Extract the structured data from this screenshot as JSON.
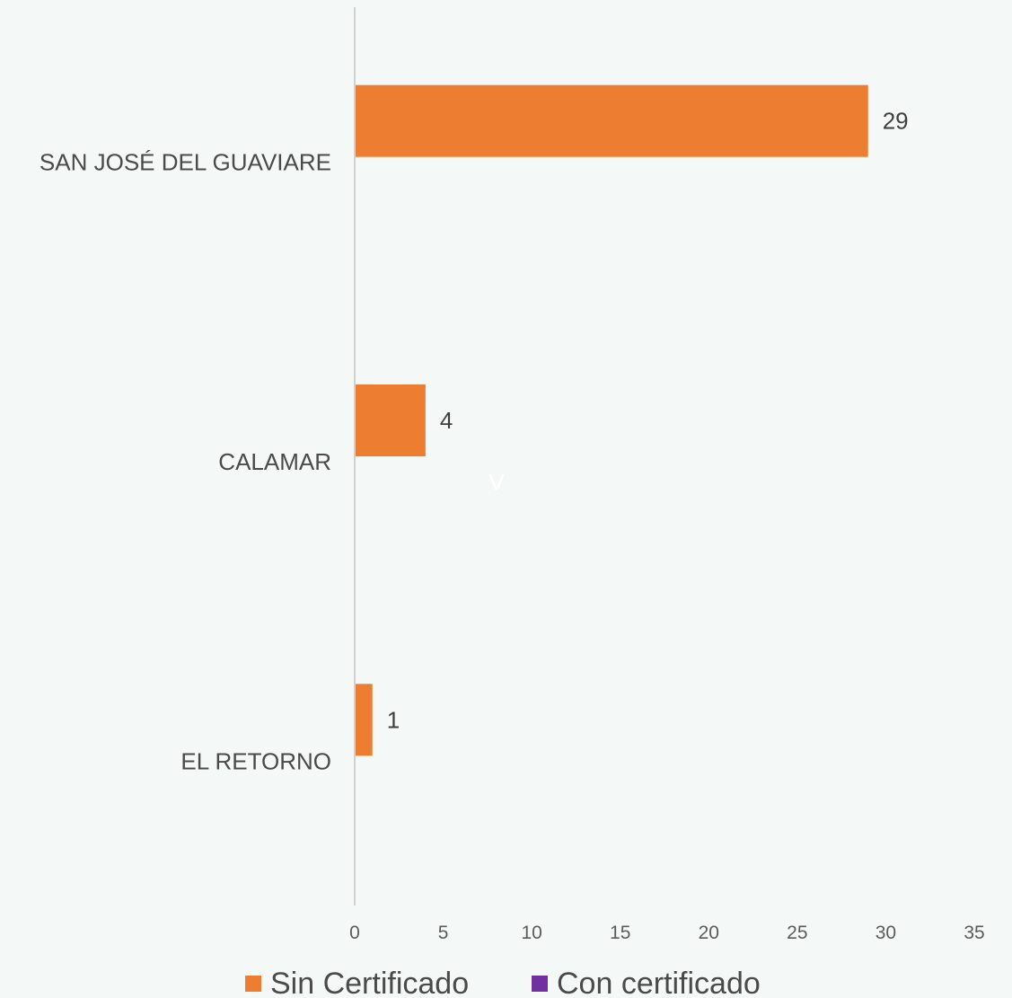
{
  "chart_data": {
    "type": "bar",
    "orientation": "horizontal",
    "categories": [
      "SAN JOSÉ DEL GUAVIARE",
      "CALAMAR",
      "EL RETORNO"
    ],
    "series": [
      {
        "name": "Sin Certificado",
        "color": "#ed7d31",
        "values": [
          29,
          4,
          1
        ]
      },
      {
        "name": "Con certificado",
        "color": "#7030a0",
        "values": [
          0,
          0,
          0
        ]
      }
    ],
    "data_labels": [
      "29",
      "4",
      "1"
    ],
    "xlim": [
      0,
      35
    ],
    "xticks": [
      0,
      5,
      10,
      15,
      20,
      25,
      30,
      35
    ],
    "grid": false,
    "legend_position": "bottom",
    "stray_text": "V"
  },
  "colors": {
    "background": "#f4f9f7",
    "axis_line": "#d0d0d0"
  }
}
